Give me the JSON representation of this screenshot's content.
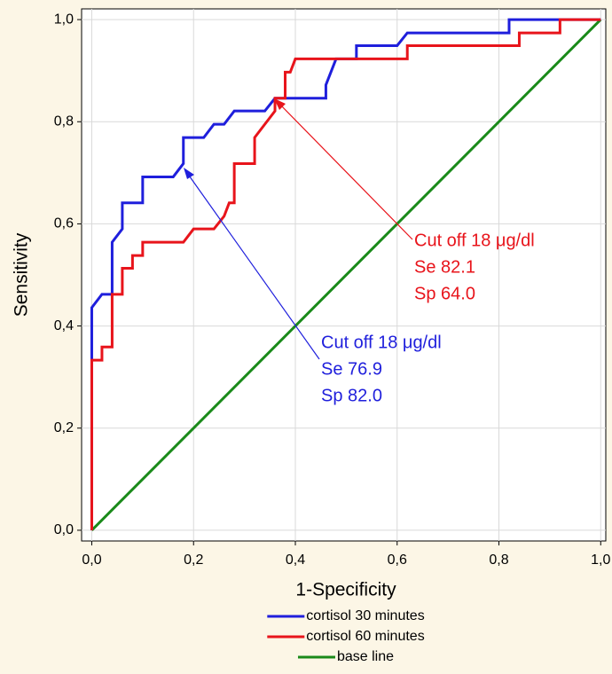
{
  "chart_data": {
    "type": "line",
    "xlabel": "1-Specificity",
    "ylabel": "Sensitivity",
    "xlim": [
      -0.02,
      1.01
    ],
    "ylim": [
      -0.021,
      1.021
    ],
    "xticks": [
      {
        "value": 0,
        "label": "0,0"
      },
      {
        "value": 0.2,
        "label": "0,2"
      },
      {
        "value": 0.4,
        "label": "0,4"
      },
      {
        "value": 0.6,
        "label": "0,6"
      },
      {
        "value": 0.8,
        "label": "0,8"
      },
      {
        "value": 1,
        "label": "1,0"
      }
    ],
    "yticks": [
      {
        "value": 0,
        "label": "0,0"
      },
      {
        "value": 0.2,
        "label": "0,2"
      },
      {
        "value": 0.4,
        "label": "0,4"
      },
      {
        "value": 0.6,
        "label": "0,6"
      },
      {
        "value": 0.8,
        "label": "0,8"
      },
      {
        "value": 1,
        "label": "1,0"
      }
    ],
    "grid": true,
    "series": [
      {
        "name": "cortisol 30 minutes",
        "color": "#1f1fdc",
        "x": [
          0,
          0,
          0.02,
          0.04,
          0.04,
          0.06,
          0.06,
          0.1,
          0.1,
          0.16,
          0.18,
          0.18,
          0.22,
          0.24,
          0.26,
          0.28,
          0.34,
          0.36,
          0.46,
          0.46,
          0.48,
          0.52,
          0.52,
          0.6,
          0.62,
          0.82,
          0.82,
          1
        ],
        "values": [
          0,
          0.436,
          0.462,
          0.462,
          0.564,
          0.59,
          0.641,
          0.641,
          0.692,
          0.692,
          0.718,
          0.769,
          0.769,
          0.795,
          0.795,
          0.821,
          0.821,
          0.846,
          0.846,
          0.872,
          0.923,
          0.923,
          0.949,
          0.949,
          0.974,
          0.974,
          1,
          1
        ]
      },
      {
        "name": "cortisol 60 minutes",
        "color": "#e8141b",
        "x": [
          0,
          0,
          0.02,
          0.02,
          0.04,
          0.04,
          0.06,
          0.06,
          0.08,
          0.08,
          0.1,
          0.1,
          0.18,
          0.2,
          0.24,
          0.26,
          0.27,
          0.28,
          0.28,
          0.32,
          0.32,
          0.34,
          0.36,
          0.36,
          0.38,
          0.38,
          0.39,
          0.4,
          0.62,
          0.62,
          0.84,
          0.84,
          0.92,
          0.92,
          1
        ],
        "values": [
          0,
          0.333,
          0.333,
          0.359,
          0.359,
          0.462,
          0.462,
          0.513,
          0.513,
          0.538,
          0.538,
          0.564,
          0.564,
          0.59,
          0.59,
          0.615,
          0.641,
          0.641,
          0.718,
          0.718,
          0.769,
          0.795,
          0.821,
          0.846,
          0.846,
          0.897,
          0.897,
          0.923,
          0.923,
          0.949,
          0.949,
          0.974,
          0.974,
          1,
          1
        ]
      },
      {
        "name": "base line",
        "color": "#1a8a1a",
        "x": [
          0,
          1
        ],
        "values": [
          0,
          1
        ]
      }
    ],
    "annotations": [
      {
        "lines": [
          "Cut off 18 μg/dl",
          "Se 82.1",
          "Sp 64.0"
        ],
        "color": "#e8141b"
      },
      {
        "lines": [
          "Cut off 18 μg/dl",
          "Se 76.9",
          "Sp 82.0"
        ],
        "color": "#1f1fdc"
      }
    ]
  }
}
